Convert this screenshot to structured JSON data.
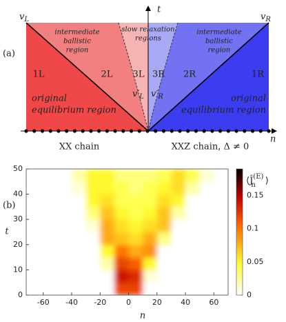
{
  "diagram": {
    "panel_label": "(a)",
    "t_axis": "t",
    "n_axis": "n",
    "v_left": {
      "base": "v",
      "sub": "L"
    },
    "v_right": {
      "base": "v",
      "sub": "R"
    },
    "v_left_prime": {
      "base": "v′",
      "sub": "L"
    },
    "v_right_prime": {
      "base": "v′",
      "sub": "R"
    },
    "left_intermediate": [
      "intermediate",
      "ballistic",
      "region"
    ],
    "slow_relaxation": [
      "slow relaxation",
      "regions"
    ],
    "right_intermediate": [
      "intermediate",
      "ballistic",
      "region"
    ],
    "region_labels": [
      "1L",
      "2L",
      "3L",
      "3R",
      "2R",
      "1R"
    ],
    "left_original": [
      "original",
      "equilibrium region"
    ],
    "right_original": [
      "original",
      "equilibrium region"
    ],
    "left_chain": "XX chain",
    "right_chain": "XXZ chain, Δ ≠ 0"
  },
  "chart_data": {
    "type": "heatmap",
    "panel_label": "(b)",
    "x_label": "n",
    "y_label": "t",
    "colorbar_label": {
      "base": "⟨Ĵ",
      "sub": "n",
      "sup": "(E)",
      "close": "⟩"
    },
    "x": [
      -65,
      -55,
      -45,
      -35,
      -25,
      -15,
      -5,
      5,
      15,
      25,
      35,
      45,
      55,
      65
    ],
    "y": [
      2.5,
      7.5,
      12.5,
      17.5,
      22.5,
      27.5,
      32.5,
      37.5,
      42.5,
      47.5
    ],
    "z": [
      [
        0,
        0,
        0,
        0,
        0,
        0,
        0.12,
        0.12,
        0,
        0,
        0,
        0,
        0,
        0
      ],
      [
        0,
        0,
        0,
        0,
        0,
        0,
        0.14,
        0.13,
        0.01,
        0,
        0,
        0,
        0,
        0
      ],
      [
        0,
        0,
        0,
        0,
        0,
        0.02,
        0.12,
        0.11,
        0.05,
        0,
        0,
        0,
        0,
        0
      ],
      [
        0,
        0,
        0,
        0,
        0,
        0.05,
        0.1,
        0.08,
        0.09,
        0,
        0,
        0,
        0,
        0
      ],
      [
        0,
        0,
        0,
        0,
        0,
        0.08,
        0.07,
        0.06,
        0.08,
        0.03,
        0,
        0,
        0,
        0
      ],
      [
        0,
        0,
        0,
        0,
        0.01,
        0.08,
        0.06,
        0.05,
        0.06,
        0.07,
        0,
        0,
        0,
        0
      ],
      [
        0,
        0,
        0,
        0,
        0.03,
        0.07,
        0.05,
        0.04,
        0.05,
        0.07,
        0.02,
        0,
        0,
        0
      ],
      [
        0,
        0,
        0,
        0,
        0.05,
        0.06,
        0.04,
        0.04,
        0.04,
        0.06,
        0.05,
        0,
        0,
        0
      ],
      [
        0,
        0,
        0,
        0.01,
        0.05,
        0.05,
        0.04,
        0.03,
        0.04,
        0.05,
        0.06,
        0.02,
        0,
        0
      ],
      [
        0,
        0,
        0,
        0.02,
        0.05,
        0.05,
        0.03,
        0.03,
        0.03,
        0.04,
        0.06,
        0.04,
        0.01,
        0
      ]
    ],
    "xlim": [
      -72,
      70
    ],
    "ylim": [
      0,
      50
    ],
    "xticks": [
      -60,
      -40,
      -20,
      0,
      20,
      40,
      60
    ],
    "yticks": [
      0,
      10,
      20,
      30,
      40,
      50
    ],
    "zlim": [
      0,
      0.19
    ],
    "zticks": [
      0,
      0.05,
      0.1,
      0.15
    ]
  }
}
